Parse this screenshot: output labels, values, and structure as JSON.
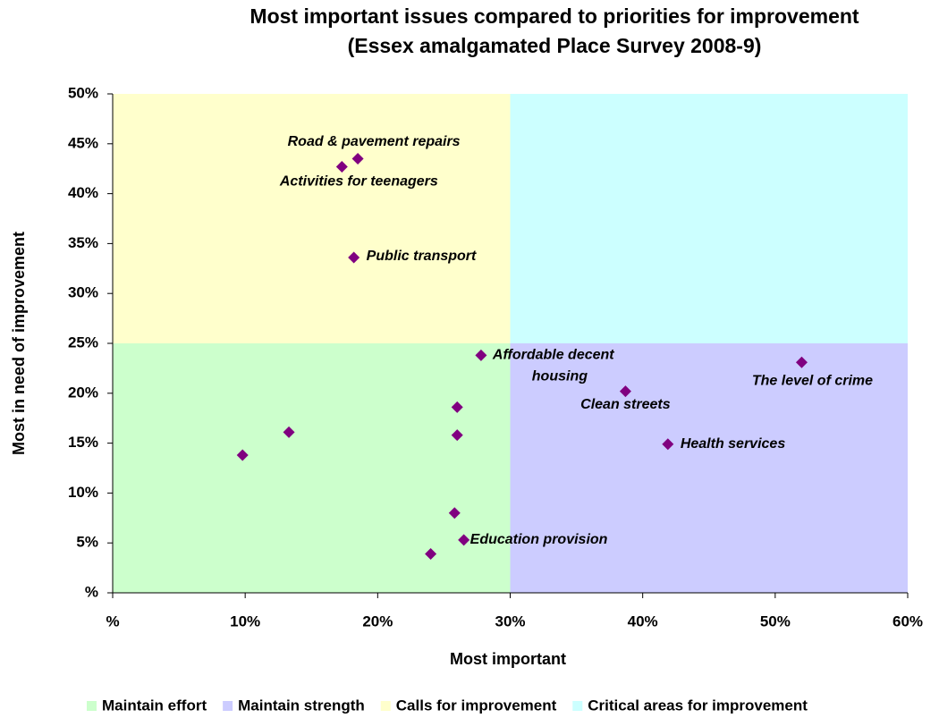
{
  "chart_data": {
    "type": "scatter",
    "title": [
      "Most important issues compared to priorities for improvement",
      "(Essex amalgamated Place Survey 2008-9)"
    ],
    "x_label": "Most important",
    "y_label": "Most in need of improvement",
    "xlim": [
      0,
      60
    ],
    "ylim": [
      0,
      50
    ],
    "xticks": [
      {
        "value": 0,
        "label": "%"
      },
      {
        "value": 10,
        "label": "10%"
      },
      {
        "value": 20,
        "label": "20%"
      },
      {
        "value": 30,
        "label": "30%"
      },
      {
        "value": 40,
        "label": "40%"
      },
      {
        "value": 50,
        "label": "50%"
      },
      {
        "value": 60,
        "label": "60%"
      }
    ],
    "yticks": [
      {
        "value": 0,
        "label": "%"
      },
      {
        "value": 5,
        "label": "5%"
      },
      {
        "value": 10,
        "label": "10%"
      },
      {
        "value": 15,
        "label": "15%"
      },
      {
        "value": 20,
        "label": "20%"
      },
      {
        "value": 25,
        "label": "25%"
      },
      {
        "value": 30,
        "label": "30%"
      },
      {
        "value": 35,
        "label": "35%"
      },
      {
        "value": 40,
        "label": "40%"
      },
      {
        "value": 45,
        "label": "45%"
      },
      {
        "value": 50,
        "label": "50%"
      }
    ],
    "quadrants": [
      {
        "name": "Maintain effort",
        "color": "#ccffcc",
        "x": [
          0,
          30
        ],
        "y": [
          0,
          25
        ]
      },
      {
        "name": "Maintain strength",
        "color": "#ccccff",
        "x": [
          30,
          60
        ],
        "y": [
          0,
          25
        ]
      },
      {
        "name": "Calls for improvement",
        "color": "#ffffcc",
        "x": [
          0,
          30
        ],
        "y": [
          25,
          50
        ]
      },
      {
        "name": "Critical areas for improvement",
        "color": "#ccffff",
        "x": [
          30,
          60
        ],
        "y": [
          25,
          50
        ]
      }
    ],
    "marker_color": "#800080",
    "x": [
      18.5,
      17.3,
      18.2,
      27.8,
      52.0,
      38.7,
      26.0,
      13.3,
      26.0,
      41.9,
      9.8,
      25.8,
      26.5,
      24.0
    ],
    "y": [
      43.5,
      42.7,
      33.6,
      23.8,
      23.1,
      20.2,
      18.6,
      16.1,
      15.8,
      14.9,
      13.8,
      8.0,
      5.3,
      3.9
    ],
    "labels": [
      "Road & pavement repairs",
      "Activities for teenagers",
      "Public transport",
      "Affordable decent housing",
      "The level of crime",
      "Clean streets",
      null,
      null,
      null,
      "Health services",
      null,
      null,
      "Education provision",
      null
    ]
  }
}
